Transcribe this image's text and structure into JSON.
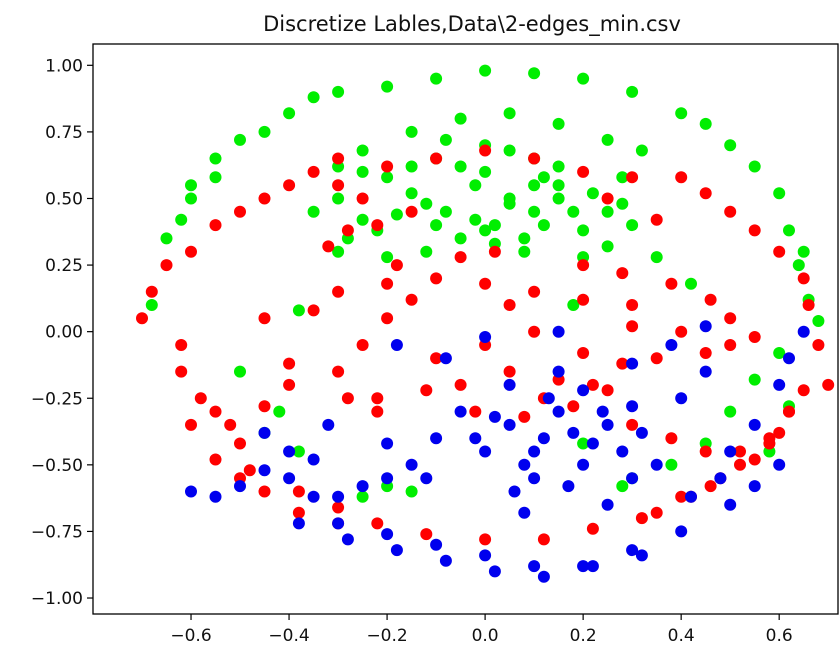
{
  "chart_data": {
    "type": "scatter",
    "title": "Discretize Lables,Data\\2-edges_min.csv",
    "xlabel": "",
    "ylabel": "",
    "xlim": [
      -0.8,
      0.72
    ],
    "ylim": [
      -1.06,
      1.08
    ],
    "x_ticks": [
      -0.6,
      -0.4,
      -0.2,
      0.0,
      0.2,
      0.4,
      0.6
    ],
    "y_ticks": [
      -1.0,
      -0.75,
      -0.5,
      -0.25,
      0.0,
      0.25,
      0.5,
      0.75,
      1.0
    ],
    "x_tick_labels": [
      "−0.6",
      "−0.4",
      "−0.2",
      "0.0",
      "0.2",
      "0.4",
      "0.6"
    ],
    "y_tick_labels": [
      "−1.00",
      "−0.75",
      "−0.50",
      "−0.25",
      "0.00",
      "0.25",
      "0.50",
      "0.75",
      "1.00"
    ],
    "grid": false,
    "legend": "none",
    "series": [
      {
        "color": "#00ee00",
        "x": [
          0.05,
          -0.08,
          0.12,
          -0.15,
          0.2,
          -0.25,
          0.0,
          0.1,
          -0.05,
          0.28,
          -0.3,
          0.15,
          -0.12,
          0.08,
          -0.2,
          0.25,
          0.02,
          -0.1,
          0.18,
          -0.28,
          0.3,
          -0.35,
          0.35,
          -0.02,
          0.05,
          0.0,
          0.1,
          0.15,
          -0.1,
          -0.18,
          0.22,
          -0.22,
          0.12,
          -0.05,
          0.08,
          -0.12,
          0.2,
          -0.25,
          0.28,
          -0.3,
          0.0,
          0.05,
          0.1,
          -0.08,
          0.15,
          -0.15,
          0.02,
          -0.02,
          0.25,
          -0.2,
          -0.45,
          -0.4,
          -0.5,
          -0.55,
          -0.6,
          -0.35,
          -0.3,
          -0.2,
          -0.1,
          0.0,
          0.1,
          0.2,
          0.3,
          0.4,
          0.45,
          0.5,
          0.55,
          0.6,
          0.62,
          0.65,
          -0.62,
          -0.65,
          -0.6,
          -0.55,
          -0.3,
          -0.25,
          -0.15,
          -0.05,
          0.05,
          0.15,
          0.25,
          0.32,
          -0.68,
          0.66,
          0.68,
          0.64,
          -0.38,
          0.42,
          0.18,
          -0.45,
          -0.38,
          0.45,
          0.5,
          0.55,
          0.62,
          -0.2,
          0.3,
          0.58,
          -0.25,
          0.2,
          -0.15,
          0.28,
          0.38,
          0.6,
          -0.5,
          -0.42
        ],
        "y": [
          0.48,
          0.45,
          0.4,
          0.52,
          0.38,
          0.42,
          0.6,
          0.55,
          0.35,
          0.48,
          0.5,
          0.62,
          0.3,
          0.3,
          0.58,
          0.32,
          0.4,
          0.65,
          0.45,
          0.35,
          0.4,
          0.45,
          0.28,
          0.55,
          0.5,
          0.38,
          0.45,
          0.5,
          0.4,
          0.44,
          0.52,
          0.38,
          0.58,
          0.62,
          0.35,
          0.48,
          0.28,
          0.6,
          0.58,
          0.3,
          0.7,
          0.68,
          0.65,
          0.72,
          0.55,
          0.62,
          0.33,
          0.42,
          0.45,
          0.28,
          0.75,
          0.82,
          0.72,
          0.65,
          0.55,
          0.88,
          0.9,
          0.92,
          0.95,
          0.98,
          0.97,
          0.95,
          0.9,
          0.82,
          0.78,
          0.7,
          0.62,
          0.52,
          0.38,
          0.3,
          0.42,
          0.35,
          0.5,
          0.58,
          0.62,
          0.68,
          0.75,
          0.8,
          0.82,
          0.78,
          0.72,
          0.68,
          0.1,
          0.12,
          0.04,
          0.25,
          0.08,
          0.18,
          0.1,
          -0.38,
          -0.45,
          -0.42,
          -0.3,
          -0.18,
          -0.28,
          -0.58,
          -0.55,
          -0.45,
          -0.62,
          -0.42,
          -0.6,
          -0.58,
          -0.5,
          -0.08,
          -0.15,
          -0.3
        ]
      },
      {
        "color": "#ff0000",
        "x": [
          0.0,
          0.1,
          -0.1,
          0.2,
          -0.2,
          0.3,
          -0.3,
          0.05,
          -0.05,
          0.15,
          -0.15,
          0.25,
          -0.25,
          0.35,
          -0.35,
          0.4,
          -0.4,
          0.45,
          0.5,
          -0.45,
          0.0,
          0.1,
          -0.1,
          0.2,
          -0.2,
          0.3,
          -0.3,
          0.12,
          -0.12,
          0.22,
          -0.22,
          0.05,
          0.28,
          -0.28,
          -0.68,
          -0.7,
          -0.65,
          -0.6,
          -0.55,
          -0.5,
          -0.45,
          -0.4,
          -0.35,
          -0.3,
          -0.62,
          -0.58,
          -0.52,
          0.68,
          0.66,
          0.7,
          0.65,
          0.6,
          0.55,
          0.5,
          0.45,
          0.4,
          0.62,
          0.58,
          0.52,
          -0.2,
          -0.1,
          0.0,
          0.1,
          0.2,
          0.3,
          -0.3,
          -0.25,
          -0.15,
          0.25,
          0.35,
          -0.62,
          -0.6,
          -0.55,
          -0.5,
          -0.45,
          -0.38,
          -0.3,
          0.48,
          0.55,
          0.6,
          0.65,
          0.42,
          0.35,
          -0.5,
          -0.55,
          -0.48,
          -0.38,
          -0.3,
          -0.22,
          -0.12,
          0.0,
          0.12,
          0.22,
          0.32,
          0.4,
          0.46,
          0.52,
          0.58,
          0.62,
          -0.32,
          -0.28,
          -0.22,
          -0.18,
          -0.05,
          0.02,
          0.2,
          0.28,
          0.38,
          0.46,
          0.5,
          0.55,
          -0.02,
          0.08,
          0.18,
          -0.22,
          0.3,
          0.38,
          0.45,
          -0.4,
          -0.45
        ],
        "y": [
          -0.05,
          0.0,
          -0.1,
          -0.08,
          0.05,
          0.02,
          -0.15,
          0.1,
          -0.2,
          -0.18,
          0.12,
          -0.22,
          -0.05,
          -0.1,
          0.08,
          0.0,
          -0.12,
          -0.08,
          -0.05,
          0.05,
          0.18,
          0.15,
          0.2,
          0.12,
          0.18,
          0.1,
          0.15,
          -0.25,
          -0.22,
          -0.2,
          -0.25,
          -0.15,
          -0.12,
          -0.25,
          0.15,
          0.05,
          0.25,
          0.3,
          0.4,
          0.45,
          0.5,
          0.55,
          0.6,
          0.65,
          -0.15,
          -0.25,
          -0.35,
          -0.05,
          0.1,
          -0.2,
          0.2,
          0.3,
          0.38,
          0.45,
          0.52,
          0.58,
          -0.3,
          -0.4,
          -0.45,
          0.62,
          0.65,
          0.68,
          0.65,
          0.6,
          0.58,
          0.55,
          0.5,
          0.45,
          0.5,
          0.42,
          -0.05,
          -0.35,
          -0.48,
          -0.55,
          -0.6,
          -0.68,
          -0.72,
          -0.55,
          -0.48,
          -0.38,
          -0.22,
          -0.62,
          -0.68,
          -0.42,
          -0.3,
          -0.52,
          -0.6,
          -0.66,
          -0.72,
          -0.76,
          -0.78,
          -0.78,
          -0.74,
          -0.7,
          -0.62,
          -0.58,
          -0.5,
          -0.42,
          -0.3,
          0.32,
          0.38,
          0.4,
          0.25,
          0.28,
          0.3,
          0.25,
          0.22,
          0.18,
          0.12,
          0.05,
          -0.02,
          -0.3,
          -0.32,
          -0.28,
          -0.3,
          -0.35,
          -0.4,
          -0.45,
          -0.2,
          -0.28
        ]
      },
      {
        "color": "#0000ee",
        "x": [
          0.05,
          0.12,
          0.18,
          0.0,
          0.08,
          0.15,
          0.22,
          0.1,
          0.02,
          0.2,
          0.25,
          0.3,
          -0.02,
          0.13,
          0.06,
          0.17,
          0.1,
          0.2,
          0.28,
          -0.05,
          0.05,
          0.15,
          0.24,
          0.32,
          0.35,
          0.4,
          0.45,
          0.3,
          -0.1,
          -0.15,
          -0.2,
          -0.25,
          -0.3,
          -0.35,
          -0.4,
          -0.45,
          -0.5,
          -0.55,
          -0.6,
          -0.3,
          -0.2,
          -0.1,
          0.0,
          0.1,
          0.2,
          0.3,
          0.4,
          0.5,
          0.55,
          0.6,
          -0.38,
          -0.28,
          -0.18,
          -0.08,
          0.02,
          0.12,
          0.22,
          0.32,
          -0.4,
          -0.32,
          0.42,
          0.48,
          0.5,
          0.55,
          0.6,
          0.62,
          0.65,
          0.38,
          0.45,
          -0.08,
          -0.18,
          0.0,
          0.15,
          0.3,
          -0.12,
          0.08,
          0.25,
          -0.2,
          -0.35,
          -0.45
        ],
        "y": [
          -0.35,
          -0.4,
          -0.38,
          -0.45,
          -0.5,
          -0.3,
          -0.42,
          -0.55,
          -0.32,
          -0.5,
          -0.35,
          -0.28,
          -0.4,
          -0.25,
          -0.6,
          -0.58,
          -0.45,
          -0.22,
          -0.45,
          -0.3,
          -0.2,
          -0.15,
          -0.3,
          -0.38,
          -0.5,
          -0.25,
          -0.15,
          -0.55,
          -0.4,
          -0.5,
          -0.55,
          -0.58,
          -0.62,
          -0.62,
          -0.55,
          -0.52,
          -0.58,
          -0.62,
          -0.6,
          -0.72,
          -0.76,
          -0.8,
          -0.84,
          -0.88,
          -0.88,
          -0.82,
          -0.75,
          -0.65,
          -0.58,
          -0.5,
          -0.72,
          -0.78,
          -0.82,
          -0.86,
          -0.9,
          -0.92,
          -0.88,
          -0.84,
          -0.45,
          -0.35,
          -0.62,
          -0.55,
          -0.45,
          -0.35,
          -0.2,
          -0.1,
          0.0,
          -0.05,
          0.02,
          -0.1,
          -0.05,
          -0.02,
          0.0,
          -0.12,
          -0.55,
          -0.68,
          -0.65,
          -0.42,
          -0.48,
          -0.38
        ]
      }
    ]
  }
}
